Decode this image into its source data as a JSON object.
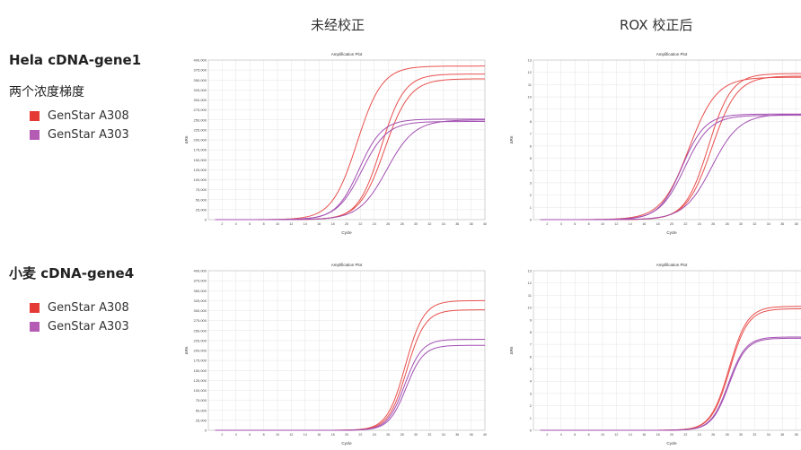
{
  "headers": {
    "col1": "未经校正",
    "col2": "ROX 校正后"
  },
  "rows": [
    {
      "title": "Hela cDNA-gene1",
      "subtitle": "两个浓度梯度",
      "legend": [
        {
          "label": "GenStar A308",
          "color": "#e53935"
        },
        {
          "label": "GenStar A303",
          "color": "#b45cb4"
        }
      ]
    },
    {
      "title": "小麦 cDNA-gene4",
      "subtitle": "",
      "legend": [
        {
          "label": "GenStar A308",
          "color": "#e53935"
        },
        {
          "label": "GenStar A303",
          "color": "#b45cb4"
        }
      ]
    }
  ],
  "chart_data": [
    {
      "type": "line",
      "title": "Amplification Plot",
      "xlabel": "Cycle",
      "ylabel": "ΔRn",
      "xlim": [
        0,
        40
      ],
      "ylim": [
        0,
        400000
      ],
      "yticks": [
        0,
        25000,
        50000,
        75000,
        100000,
        125000,
        150000,
        175000,
        200000,
        225000,
        250000,
        275000,
        300000,
        325000,
        350000,
        375000,
        400000
      ],
      "ytick_labels": [
        "0",
        "25,000",
        "50,000",
        "75,000",
        "100,000",
        "125,000",
        "150,000",
        "175,000",
        "200,000",
        "225,000",
        "250,000",
        "275,000",
        "300,000",
        "325,000",
        "350,000",
        "375,000",
        "400,000"
      ],
      "xticks": [
        2,
        4,
        6,
        8,
        10,
        12,
        14,
        16,
        18,
        20,
        22,
        24,
        26,
        28,
        30,
        32,
        34,
        36,
        38,
        40
      ],
      "series": [
        {
          "color": "#e8504e",
          "plateau": 385000,
          "ct": 21.5,
          "k": 0.55
        },
        {
          "color": "#e8504e",
          "plateau": 365000,
          "ct": 25.0,
          "k": 0.6
        },
        {
          "color": "#e8504e",
          "plateau": 353000,
          "ct": 25.5,
          "k": 0.55
        },
        {
          "color": "#a24fb2",
          "plateau": 252000,
          "ct": 21.8,
          "k": 0.6
        },
        {
          "color": "#a24fb2",
          "plateau": 246000,
          "ct": 22.2,
          "k": 0.55
        },
        {
          "color": "#a24fb2",
          "plateau": 250000,
          "ct": 25.8,
          "k": 0.5
        }
      ]
    },
    {
      "type": "line",
      "title": "Amplification Plot",
      "xlabel": "Cycle",
      "ylabel": "ΔRn",
      "xlim": [
        0,
        40
      ],
      "ylim": [
        0,
        13
      ],
      "yticks": [
        0,
        1,
        2,
        3,
        4,
        5,
        6,
        7,
        8,
        9,
        10,
        11,
        12,
        13
      ],
      "ytick_labels": [
        "0",
        "1",
        "2",
        "3",
        "4",
        "5",
        "6",
        "7",
        "8",
        "9",
        "10",
        "11",
        "12",
        "13"
      ],
      "xticks": [
        2,
        4,
        6,
        8,
        10,
        12,
        14,
        16,
        18,
        20,
        22,
        24,
        26,
        28,
        30,
        32,
        34,
        36,
        38,
        40
      ],
      "series": [
        {
          "color": "#e8504e",
          "plateau": 11.6,
          "ct": 22.5,
          "k": 0.5
        },
        {
          "color": "#e8504e",
          "plateau": 11.9,
          "ct": 25.3,
          "k": 0.6
        },
        {
          "color": "#e8504e",
          "plateau": 11.7,
          "ct": 25.8,
          "k": 0.55
        },
        {
          "color": "#a24fb2",
          "plateau": 8.6,
          "ct": 21.5,
          "k": 0.6
        },
        {
          "color": "#a24fb2",
          "plateau": 8.5,
          "ct": 21.9,
          "k": 0.55
        },
        {
          "color": "#a24fb2",
          "plateau": 8.6,
          "ct": 25.8,
          "k": 0.5
        }
      ]
    },
    {
      "type": "line",
      "title": "Amplification Plot",
      "xlabel": "Cycle",
      "ylabel": "ΔRn",
      "xlim": [
        0,
        40
      ],
      "ylim": [
        0,
        400000
      ],
      "yticks": [
        0,
        25000,
        50000,
        75000,
        100000,
        125000,
        150000,
        175000,
        200000,
        225000,
        250000,
        275000,
        300000,
        325000,
        350000,
        375000,
        400000
      ],
      "ytick_labels": [
        "0",
        "25,000",
        "50,000",
        "75,000",
        "100,000",
        "125,000",
        "150,000",
        "175,000",
        "200,000",
        "225,000",
        "250,000",
        "275,000",
        "300,000",
        "325,000",
        "350,000",
        "375,000",
        "400,000"
      ],
      "xticks": [
        2,
        4,
        6,
        8,
        10,
        12,
        14,
        16,
        18,
        20,
        22,
        24,
        26,
        28,
        30,
        32,
        34,
        36,
        38,
        40
      ],
      "series": [
        {
          "color": "#e8504e",
          "plateau": 325000,
          "ct": 28.5,
          "k": 0.75
        },
        {
          "color": "#e8504e",
          "plateau": 302000,
          "ct": 28.7,
          "k": 0.75
        },
        {
          "color": "#a24fb2",
          "plateau": 228000,
          "ct": 28.4,
          "k": 0.8
        },
        {
          "color": "#a24fb2",
          "plateau": 213000,
          "ct": 28.6,
          "k": 0.8
        }
      ]
    },
    {
      "type": "line",
      "title": "Amplification Plot",
      "xlabel": "Cycle",
      "ylabel": "ΔRn",
      "xlim": [
        0,
        40
      ],
      "ylim": [
        0,
        13
      ],
      "yticks": [
        0,
        1,
        2,
        3,
        4,
        5,
        6,
        7,
        8,
        9,
        10,
        11,
        12,
        13
      ],
      "ytick_labels": [
        "0",
        "1",
        "2",
        "3",
        "4",
        "5",
        "6",
        "7",
        "8",
        "9",
        "10",
        "11",
        "12",
        "13"
      ],
      "xticks": [
        2,
        4,
        6,
        8,
        10,
        12,
        14,
        16,
        18,
        20,
        22,
        24,
        26,
        28,
        30,
        32,
        34,
        36,
        38,
        40
      ],
      "series": [
        {
          "color": "#e8504e",
          "plateau": 10.1,
          "ct": 28.3,
          "k": 0.75
        },
        {
          "color": "#e8504e",
          "plateau": 9.9,
          "ct": 28.4,
          "k": 0.75
        },
        {
          "color": "#a24fb2",
          "plateau": 7.6,
          "ct": 28.2,
          "k": 0.8
        },
        {
          "color": "#a24fb2",
          "plateau": 7.5,
          "ct": 28.3,
          "k": 0.8
        }
      ]
    }
  ]
}
